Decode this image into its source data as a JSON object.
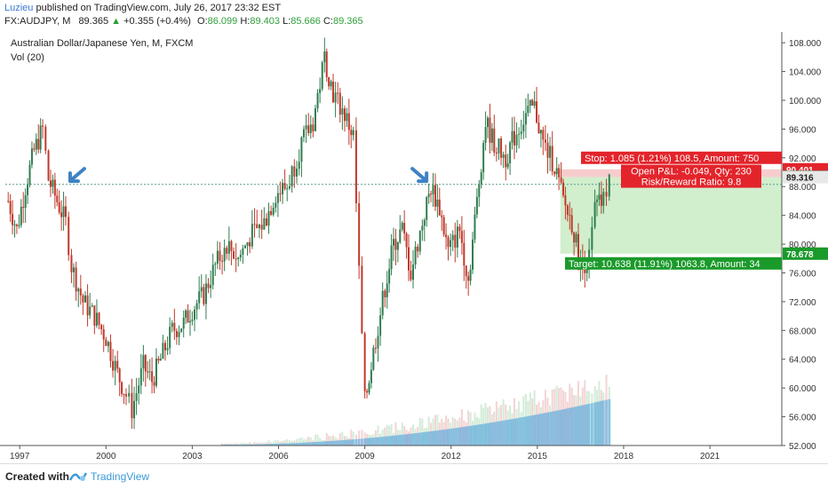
{
  "header": {
    "author": "Luzieu",
    "published": "published on TradingView.com, July 26, 2017 23:32 EST",
    "symbol": "FX:AUDJPY, M",
    "last": "89.365",
    "change": "+0.355 (+0.4%)",
    "open_label": "O:",
    "open": "86.099",
    "high_label": "H:",
    "high": "89.403",
    "low_label": "L:",
    "low": "85.666",
    "close_label": "C:",
    "close": "89.365"
  },
  "chart_data": {
    "type": "candlestick",
    "title": "Australian Dollar/Japanese Yen, M, FXCM",
    "indicator": "Vol (20)",
    "x_ticks": [
      "1997",
      "2000",
      "2003",
      "2006",
      "2009",
      "2012",
      "2015",
      "2018",
      "2021"
    ],
    "y_ticks": [
      "108.000",
      "104.000",
      "100.000",
      "96.000",
      "92.000",
      "88.000",
      "84.000",
      "80.000",
      "76.000",
      "72.000",
      "68.000",
      "64.000",
      "60.000",
      "56.000",
      "52.000"
    ],
    "ylim": [
      52,
      109.5
    ],
    "xlim": [
      1996.5,
      2023.5
    ],
    "price_path": [
      [
        1996.6,
        86
      ],
      [
        1996.9,
        82
      ],
      [
        1997.2,
        88
      ],
      [
        1997.5,
        93
      ],
      [
        1997.8,
        96
      ],
      [
        1998.0,
        89
      ],
      [
        1998.3,
        86
      ],
      [
        1998.6,
        83
      ],
      [
        1998.8,
        77
      ],
      [
        1999.2,
        72
      ],
      [
        1999.6,
        70
      ],
      [
        2000.0,
        67
      ],
      [
        2000.4,
        62
      ],
      [
        2000.7,
        59
      ],
      [
        2000.9,
        57
      ],
      [
        2001.3,
        63
      ],
      [
        2001.6,
        61
      ],
      [
        2001.9,
        64
      ],
      [
        2002.3,
        68
      ],
      [
        2002.7,
        69
      ],
      [
        2003.0,
        71
      ],
      [
        2003.4,
        73
      ],
      [
        2003.8,
        77
      ],
      [
        2004.2,
        80
      ],
      [
        2004.6,
        78
      ],
      [
        2005.0,
        81
      ],
      [
        2005.5,
        83
      ],
      [
        2005.9,
        87
      ],
      [
        2006.3,
        88
      ],
      [
        2006.8,
        94
      ],
      [
        2007.2,
        97
      ],
      [
        2007.6,
        106
      ],
      [
        2007.9,
        101
      ],
      [
        2008.3,
        98
      ],
      [
        2008.6,
        95
      ],
      [
        2008.8,
        76
      ],
      [
        2009.0,
        58
      ],
      [
        2009.3,
        65
      ],
      [
        2009.7,
        74
      ],
      [
        2010.0,
        80
      ],
      [
        2010.3,
        82
      ],
      [
        2010.6,
        76
      ],
      [
        2011.0,
        83
      ],
      [
        2011.3,
        88
      ],
      [
        2011.6,
        85
      ],
      [
        2011.9,
        79
      ],
      [
        2012.3,
        82
      ],
      [
        2012.6,
        75
      ],
      [
        2012.9,
        86
      ],
      [
        2013.2,
        97
      ],
      [
        2013.5,
        94
      ],
      [
        2013.9,
        92
      ],
      [
        2014.2,
        95
      ],
      [
        2014.6,
        98
      ],
      [
        2014.9,
        99
      ],
      [
        2015.2,
        94
      ],
      [
        2015.6,
        91
      ],
      [
        2015.9,
        86
      ],
      [
        2016.2,
        83
      ],
      [
        2016.5,
        77
      ],
      [
        2016.8,
        78
      ],
      [
        2017.0,
        85
      ],
      [
        2017.3,
        86
      ],
      [
        2017.5,
        89.365
      ]
    ],
    "volume_start": 2004.0,
    "volume_max_label": "64",
    "horizontal_line": 88.3,
    "position": {
      "entry_label": "89.316",
      "stop_label": "90.401",
      "target_label": "78.678",
      "last_label": "89.365",
      "stop_text": "Stop: 1.085 (1.21%) 108.5, Amount: 750",
      "target_text": "Target: 10.638 (11.91%) 1063.8, Amount: 34",
      "pnl_text": "Open P&L: -0.049, Qty: 230",
      "rr_text": "Risk/Reward Ratio: 9.8",
      "entry": 89.316,
      "stop": 90.401,
      "target": 78.678,
      "last": 89.365,
      "x_start": 2015.8,
      "x_end": 2023.5
    },
    "arrows": [
      {
        "x": 1999.0,
        "y": 89.5,
        "direction": "down-left"
      },
      {
        "x": 2010.9,
        "y": 89.5,
        "direction": "down-right"
      }
    ],
    "colors": {
      "up": "#2f7d4f",
      "down": "#c0392b",
      "volume": "#4aa3df",
      "target_zone": "#c9ebc4",
      "stop_zone": "#f6c7c7",
      "hline": "#5a9a8c",
      "arrow": "#3f82c4",
      "stop_label_bg": "#e3242b",
      "target_label_bg": "#1a9a2a"
    }
  },
  "footer": {
    "created_with": "Created with",
    "brand": "TradingView"
  }
}
